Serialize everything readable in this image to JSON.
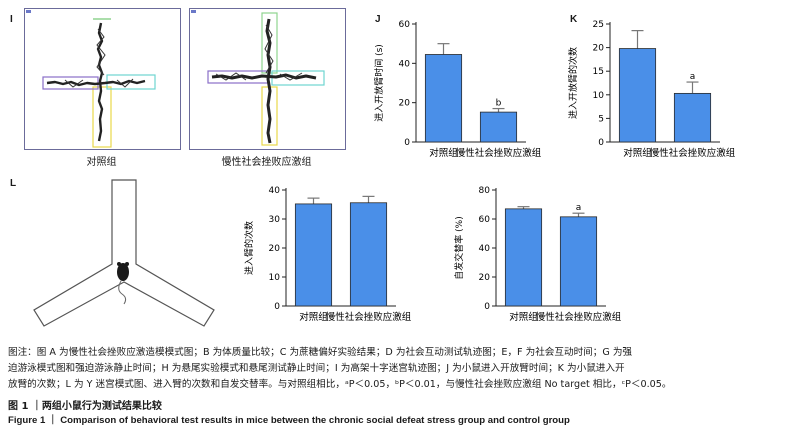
{
  "panels": {
    "I": {
      "letter": "I",
      "captions": [
        "对照组",
        "慢性社会挫败应激组"
      ]
    },
    "L": {
      "letter": "L"
    }
  },
  "chart_data": [
    {
      "id": "J",
      "letter": "J",
      "type": "bar",
      "ylabel": "进入开放臂时间 (s)",
      "categories": [
        "对照组",
        "慢性社会挫败应激组"
      ],
      "values": [
        44.5,
        15.2
      ],
      "errors": [
        5.5,
        1.8
      ],
      "sig": [
        "",
        "b"
      ],
      "ylim": [
        0,
        60
      ],
      "yticks": [
        0,
        20,
        40,
        60
      ],
      "color": "#4a8fe8"
    },
    {
      "id": "K",
      "letter": "K",
      "type": "bar",
      "ylabel": "进入开放臂的次数",
      "categories": [
        "对照组",
        "慢性社会挫败应激组"
      ],
      "values": [
        19.8,
        10.3
      ],
      "errors": [
        3.8,
        2.4
      ],
      "sig": [
        "",
        "a"
      ],
      "ylim": [
        0,
        25
      ],
      "yticks": [
        0,
        5,
        10,
        15,
        20,
        25
      ],
      "color": "#4a8fe8"
    },
    {
      "id": "L1",
      "letter": "",
      "type": "bar",
      "ylabel": "进入臂的次数",
      "categories": [
        "对照组",
        "慢性社会挫败应激组"
      ],
      "values": [
        35.2,
        35.6
      ],
      "errors": [
        2.0,
        2.2
      ],
      "sig": [
        "",
        ""
      ],
      "ylim": [
        0,
        40
      ],
      "yticks": [
        0,
        10,
        20,
        30,
        40
      ],
      "color": "#4a8fe8"
    },
    {
      "id": "L2",
      "letter": "",
      "type": "bar",
      "ylabel": "自发交替率 (%)",
      "categories": [
        "对照组",
        "慢性社会挫败应激组"
      ],
      "values": [
        67,
        61.5
      ],
      "errors": [
        1.5,
        2.5
      ],
      "sig": [
        "",
        "a"
      ],
      "ylim": [
        0,
        80
      ],
      "yticks": [
        0,
        20,
        40,
        60,
        80
      ],
      "color": "#4a8fe8"
    }
  ],
  "note": {
    "line1": "图注：图 A 为慢性社会挫败应激造模模式图；B 为体质量比较；C 为蔗糖偏好实验结果；D 为社会互动测试轨迹图；E，F 为社会互动时间；G 为强",
    "line2": "迫游泳模式图和强迫游泳静止时间；H 为悬尾实验模式和悬尾测试静止时间；I 为高架十字迷宫轨迹图；J 为小鼠进入开放臂时间；K 为小鼠进入开",
    "line3": "放臂的次数；L 为 Y 迷宫模式图、进入臂的次数和自发交替率。与对照组相比，ᵃP＜0.05，ᵇP＜0.01，与慢性社会挫败应激组 No target 相比，ᶜP＜0.05。"
  },
  "figure_title_cn": "图 1 ｜两组小鼠行为测试结果比较",
  "figure_title_en": "Figure 1 ｜ Comparison of behavioral test results in mice between the chronic social defeat stress group and control group"
}
